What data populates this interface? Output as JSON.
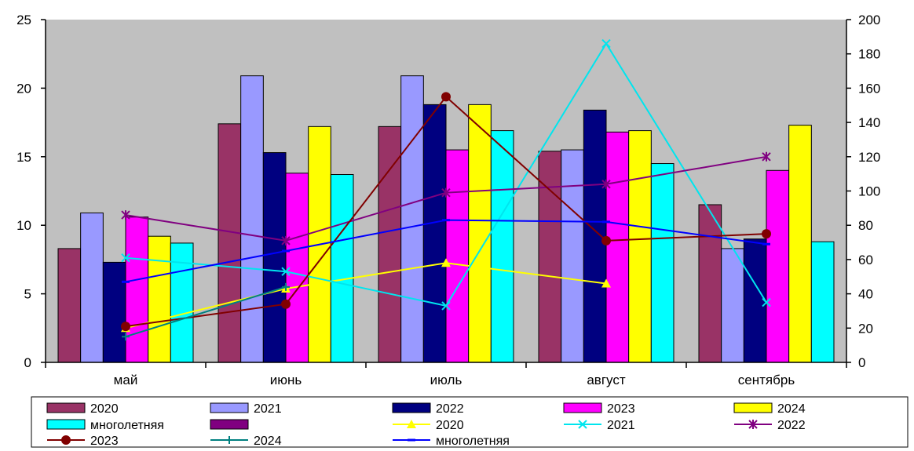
{
  "chart_data": {
    "type": "bar",
    "title": "",
    "categories": [
      "май",
      "июнь",
      "июль",
      "август",
      "сентябрь"
    ],
    "y_left": {
      "range": [
        0,
        25
      ],
      "ticks": [
        "0",
        "5",
        "10",
        "15",
        "20",
        "25"
      ]
    },
    "y_right": {
      "range": [
        0,
        200
      ],
      "ticks": [
        "0",
        "20",
        "40",
        "60",
        "80",
        "100",
        "120",
        "140",
        "160",
        "180",
        "200"
      ]
    },
    "bar_series": [
      {
        "name": "2020",
        "color": "#993366",
        "values": [
          8.3,
          17.4,
          17.2,
          15.4,
          11.5
        ]
      },
      {
        "name": "2021",
        "color": "#9999ff",
        "values": [
          10.9,
          20.9,
          20.9,
          15.5,
          8.3
        ]
      },
      {
        "name": "2022",
        "color": "#000080",
        "values": [
          7.3,
          15.3,
          18.8,
          18.4,
          9.0
        ]
      },
      {
        "name": "2023",
        "color": "#ff00ff",
        "values": [
          10.6,
          13.8,
          15.5,
          16.8,
          14.0
        ]
      },
      {
        "name": "2024",
        "color": "#ffff00",
        "values": [
          9.2,
          17.2,
          18.8,
          16.9,
          17.3
        ]
      },
      {
        "name": "многолетняя",
        "color": "#00ffff",
        "values": [
          8.7,
          13.7,
          16.9,
          14.5,
          8.8
        ]
      }
    ],
    "extra_legend_swatch": {
      "name": "",
      "color": "#800080"
    },
    "line_series": [
      {
        "name": "2020",
        "color": "#ffff00",
        "marker": "triangle",
        "values": [
          20,
          43,
          58,
          46,
          null
        ]
      },
      {
        "name": "2021",
        "color": "#00e5ee",
        "marker": "x",
        "values": [
          61,
          53,
          33,
          186,
          35
        ]
      },
      {
        "name": "2022",
        "color": "#800080",
        "marker": "asterisk",
        "values": [
          86,
          71,
          99,
          104,
          120
        ]
      },
      {
        "name": "2023",
        "color": "#800000",
        "marker": "circle",
        "values": [
          21,
          34,
          155,
          71,
          75
        ]
      },
      {
        "name": "2024",
        "color": "#008080",
        "marker": "plus",
        "values": [
          15,
          44,
          null,
          null,
          null
        ]
      },
      {
        "name": "многолетняя",
        "color": "#0000ff",
        "marker": "dash",
        "values": [
          47,
          65,
          83,
          82,
          69
        ]
      }
    ],
    "grid": false,
    "legend_position": "bottom"
  },
  "colors": {
    "plot_bg": "#c0c0c0"
  }
}
